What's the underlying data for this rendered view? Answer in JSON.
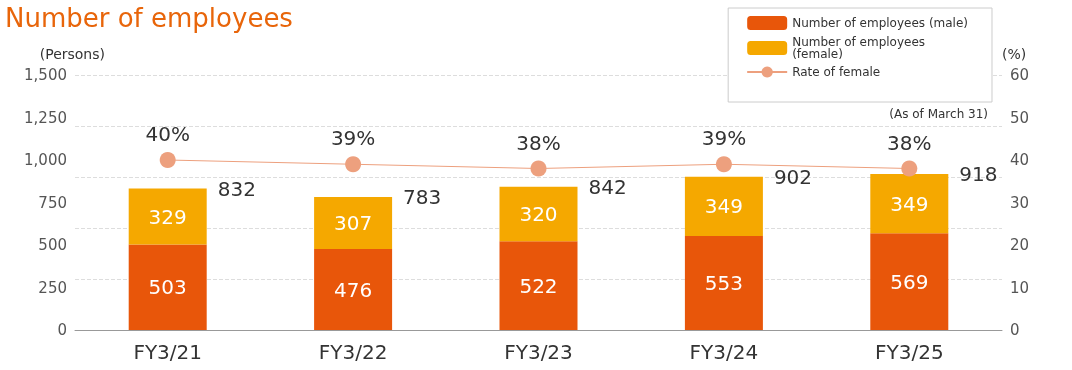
{
  "chart_data": {
    "type": "bar",
    "title": "Number of employees",
    "ylabel": "(Persons)",
    "y2label": "(%)",
    "categories": [
      "FY3/21",
      "FY3/22",
      "FY3/23",
      "FY3/24",
      "FY3/25"
    ],
    "stacked": true,
    "series": [
      {
        "name": "Number of employees (male)",
        "color": "#e8560a",
        "values": [
          503,
          476,
          522,
          553,
          569
        ]
      },
      {
        "name": "Number of employees (female)",
        "color": "#f5a800",
        "values": [
          329,
          307,
          320,
          349,
          349
        ]
      },
      {
        "name": "Rate of female",
        "type": "line",
        "axis": "y2",
        "color": "#eda07e",
        "marker": "circle",
        "values": [
          40,
          39,
          38,
          39,
          38
        ],
        "value_labels": [
          "40%",
          "39%",
          "38%",
          "39%",
          "38%"
        ]
      }
    ],
    "totals": [
      "832",
      "783",
      "842",
      "902",
      "918"
    ],
    "data_labels": true,
    "ylim": [
      0,
      1500
    ],
    "yticks": [
      0,
      250,
      500,
      750,
      {
        "value": 1000,
        "label": "1,000"
      },
      {
        "value": 1250,
        "label": "1,250"
      },
      {
        "value": 1500,
        "label": "1,500"
      }
    ],
    "y2lim": [
      0,
      60
    ],
    "y2ticks": [
      0,
      10,
      20,
      30,
      40,
      50,
      60
    ],
    "grid": "y",
    "legend": "top right",
    "annotations": [
      "(As of March 31)"
    ]
  }
}
